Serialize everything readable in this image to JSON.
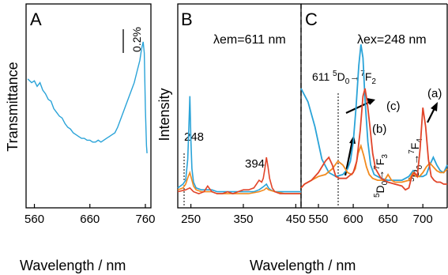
{
  "chart_data": [
    {
      "panel_label": "A",
      "type": "line",
      "ylabel": "Transmittance",
      "xlabel": "Wavelength / nm",
      "xlim": [
        545,
        770
      ],
      "x_ticks": [
        560,
        660,
        760
      ],
      "scale_bar_label": "0.2%",
      "series": [
        {
          "color": "#2aa3d8",
          "x": [
            548,
            555,
            560,
            565,
            570,
            575,
            580,
            585,
            590,
            595,
            600,
            605,
            610,
            615,
            620,
            625,
            630,
            635,
            640,
            645,
            650,
            655,
            660,
            665,
            670,
            675,
            680,
            685,
            690,
            695,
            700,
            705,
            710,
            715,
            720,
            725,
            730,
            735,
            740,
            745,
            750,
            753,
            756,
            758,
            760,
            762,
            763
          ],
          "y": [
            0.66,
            0.64,
            0.65,
            0.62,
            0.64,
            0.6,
            0.58,
            0.55,
            0.54,
            0.5,
            0.48,
            0.46,
            0.45,
            0.42,
            0.4,
            0.39,
            0.37,
            0.36,
            0.35,
            0.34,
            0.34,
            0.33,
            0.33,
            0.32,
            0.32,
            0.33,
            0.32,
            0.33,
            0.34,
            0.35,
            0.36,
            0.37,
            0.4,
            0.44,
            0.48,
            0.52,
            0.56,
            0.6,
            0.64,
            0.7,
            0.76,
            0.82,
            0.86,
            0.8,
            0.5,
            0.3,
            0.26
          ]
        }
      ]
    },
    {
      "panel_label": "B",
      "type": "line",
      "ylabel": "Intensity",
      "title": "λem=611 nm",
      "xlim": [
        225,
        460
      ],
      "x_ticks": [
        250,
        350,
        450
      ],
      "annotations": [
        {
          "text": "248",
          "x": 248
        },
        {
          "text": "394",
          "x": 394
        }
      ],
      "series": [
        {
          "color": "#2aa3d8",
          "x": [
            225,
            235,
            240,
            244,
            246,
            248,
            250,
            252,
            255,
            260,
            270,
            280,
            290,
            300,
            310,
            320,
            330,
            340,
            350,
            360,
            370,
            380,
            385,
            390,
            394,
            398,
            402,
            410,
            420,
            430,
            440,
            450,
            460
          ],
          "y": [
            0.1,
            0.12,
            0.14,
            0.25,
            0.4,
            0.58,
            0.35,
            0.2,
            0.13,
            0.1,
            0.09,
            0.09,
            0.09,
            0.08,
            0.08,
            0.08,
            0.08,
            0.08,
            0.08,
            0.08,
            0.08,
            0.09,
            0.1,
            0.11,
            0.12,
            0.1,
            0.09,
            0.08,
            0.08,
            0.08,
            0.08,
            0.08,
            0.08
          ]
        },
        {
          "color": "#f28a1e",
          "x": [
            225,
            235,
            240,
            245,
            248,
            252,
            255,
            260,
            270,
            280,
            290,
            300,
            320,
            340,
            360,
            380,
            390,
            394,
            398,
            410,
            430,
            450,
            460
          ],
          "y": [
            0.09,
            0.1,
            0.12,
            0.16,
            0.18,
            0.14,
            0.11,
            0.09,
            0.08,
            0.08,
            0.08,
            0.07,
            0.07,
            0.07,
            0.07,
            0.08,
            0.09,
            0.1,
            0.09,
            0.08,
            0.07,
            0.07,
            0.07
          ]
        },
        {
          "color": "#e1452a",
          "x": [
            225,
            240,
            248,
            255,
            265,
            275,
            282,
            290,
            300,
            310,
            320,
            330,
            340,
            350,
            360,
            370,
            375,
            380,
            385,
            388,
            391,
            394,
            397,
            400,
            405,
            410,
            420,
            430,
            440,
            450,
            460
          ],
          "y": [
            0.08,
            0.09,
            0.1,
            0.08,
            0.07,
            0.08,
            0.11,
            0.08,
            0.07,
            0.07,
            0.08,
            0.07,
            0.08,
            0.09,
            0.09,
            0.1,
            0.12,
            0.14,
            0.13,
            0.15,
            0.2,
            0.26,
            0.21,
            0.15,
            0.1,
            0.08,
            0.07,
            0.07,
            0.07,
            0.07,
            0.07
          ]
        }
      ]
    },
    {
      "panel_label": "C",
      "type": "line",
      "title": "λex=248 nm",
      "xlabel": "Wavelength / nm",
      "xlim": [
        525,
        735
      ],
      "x_ticks": [
        550,
        600,
        650,
        700
      ],
      "annotations": [
        {
          "text": "611",
          "x": 611
        },
        {
          "text": "(a)",
          "series": "red"
        },
        {
          "text": "(b)",
          "series": "orange"
        },
        {
          "text": "(c)",
          "series": "blue"
        }
      ],
      "transitions": [
        {
          "level_from": "5",
          "state_from": "D",
          "sub_from": "0",
          "arrow": "→",
          "level_to": "7",
          "state_to": "F",
          "sub_to": "2"
        },
        {
          "level_from": "5",
          "state_from": "D",
          "sub_from": "0",
          "arrow": "→",
          "level_to": "7",
          "state_to": "F",
          "sub_to": "3"
        },
        {
          "level_from": "5",
          "state_from": "D",
          "sub_from": "0",
          "arrow": "→",
          "level_to": "7",
          "state_to": "F",
          "sub_to": "4"
        }
      ],
      "series": [
        {
          "name": "(c)",
          "color": "#2aa3d8",
          "x": [
            525,
            535,
            545,
            555,
            565,
            575,
            585,
            592,
            596,
            600,
            604,
            608,
            611,
            614,
            617,
            621,
            625,
            630,
            640,
            650,
            660,
            670,
            680,
            686,
            690,
            695,
            700,
            705,
            710,
            715,
            720,
            725,
            730,
            735
          ],
          "y": [
            0.62,
            0.55,
            0.42,
            0.25,
            0.18,
            0.16,
            0.17,
            0.2,
            0.24,
            0.34,
            0.52,
            0.74,
            0.85,
            0.78,
            0.56,
            0.34,
            0.22,
            0.17,
            0.15,
            0.14,
            0.14,
            0.14,
            0.16,
            0.19,
            0.17,
            0.16,
            0.16,
            0.17,
            0.22,
            0.26,
            0.22,
            0.19,
            0.18,
            0.22
          ]
        },
        {
          "name": "(b)",
          "color": "#f28a1e",
          "x": [
            525,
            530,
            540,
            550,
            560,
            570,
            578,
            585,
            592,
            598,
            603,
            607,
            611,
            615,
            619,
            623,
            628,
            635,
            645,
            650,
            655,
            660,
            670,
            680,
            686,
            690,
            695,
            700,
            705,
            710,
            715,
            720,
            725,
            730,
            735
          ],
          "y": [
            0.1,
            0.12,
            0.14,
            0.16,
            0.17,
            0.2,
            0.24,
            0.22,
            0.18,
            0.17,
            0.2,
            0.28,
            0.32,
            0.27,
            0.21,
            0.17,
            0.15,
            0.14,
            0.14,
            0.17,
            0.14,
            0.13,
            0.13,
            0.14,
            0.18,
            0.16,
            0.16,
            0.18,
            0.21,
            0.23,
            0.21,
            0.19,
            0.18,
            0.18,
            0.2
          ]
        },
        {
          "name": "(a)",
          "color": "#e1452a",
          "x": [
            525,
            530,
            540,
            550,
            560,
            565,
            570,
            575,
            580,
            590,
            600,
            605,
            610,
            614,
            617,
            620,
            624,
            628,
            632,
            640,
            650,
            660,
            670,
            675,
            680,
            684,
            688,
            692,
            696,
            700,
            704,
            708,
            712,
            716,
            720,
            725,
            730,
            735
          ],
          "y": [
            0.1,
            0.12,
            0.14,
            0.18,
            0.24,
            0.26,
            0.22,
            0.16,
            0.15,
            0.15,
            0.18,
            0.24,
            0.4,
            0.58,
            0.62,
            0.55,
            0.42,
            0.28,
            0.2,
            0.15,
            0.13,
            0.12,
            0.11,
            0.09,
            0.1,
            0.16,
            0.18,
            0.16,
            0.3,
            0.52,
            0.42,
            0.25,
            0.16,
            0.14,
            0.13,
            0.13,
            0.12,
            0.12
          ]
        }
      ]
    }
  ]
}
